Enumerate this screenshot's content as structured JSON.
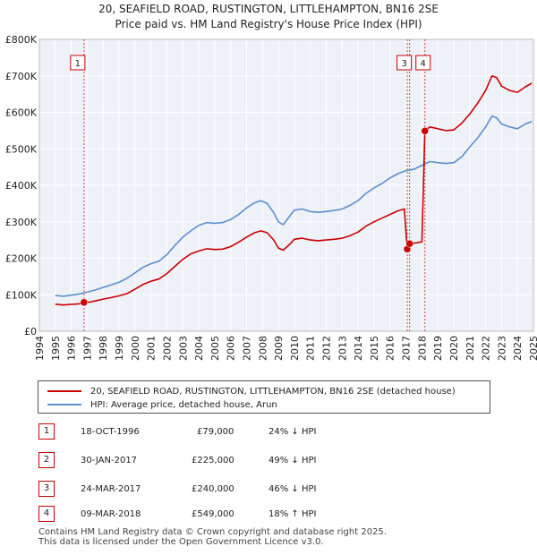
{
  "header": {
    "title": "20, SEAFIELD ROAD, RUSTINGTON, LITTLEHAMPTON, BN16 2SE",
    "subtitle": "Price paid vs. HM Land Registry's House Price Index (HPI)"
  },
  "colors": {
    "property": "#cc0000",
    "hpi": "#5b8fd1",
    "grid": "#dddddd",
    "marker_line": "#cc0000"
  },
  "chart_data": {
    "type": "line",
    "title": "20, SEAFIELD ROAD, RUSTINGTON, LITTLEHAMPTON, BN16 2SE",
    "subtitle": "Price paid vs. HM Land Registry's House Price Index (HPI)",
    "xlim": [
      1994,
      2025
    ],
    "ylim": [
      0,
      800000
    ],
    "x_ticks": [
      "1994",
      "1995",
      "1996",
      "1997",
      "1998",
      "1999",
      "2000",
      "2001",
      "2002",
      "2003",
      "2004",
      "2005",
      "2006",
      "2007",
      "2008",
      "2009",
      "2010",
      "2011",
      "2012",
      "2013",
      "2014",
      "2015",
      "2016",
      "2017",
      "2018",
      "2019",
      "2020",
      "2021",
      "2022",
      "2023",
      "2024",
      "2025"
    ],
    "y_ticks": [
      {
        "value": 0,
        "label": "£0"
      },
      {
        "value": 100000,
        "label": "£100K"
      },
      {
        "value": 200000,
        "label": "£200K"
      },
      {
        "value": 300000,
        "label": "£300K"
      },
      {
        "value": 400000,
        "label": "£400K"
      },
      {
        "value": 500000,
        "label": "£500K"
      },
      {
        "value": 600000,
        "label": "£600K"
      },
      {
        "value": 700000,
        "label": "£700K"
      },
      {
        "value": 800000,
        "label": "£800K"
      }
    ],
    "series": [
      {
        "name": "20, SEAFIELD ROAD, RUSTINGTON, LITTLEHAMPTON, BN16 2SE (detached house)",
        "color": "#cc0000",
        "points": [
          [
            1995.0,
            74000
          ],
          [
            1995.5,
            72000
          ],
          [
            1996.0,
            73500
          ],
          [
            1996.5,
            75000
          ],
          [
            1996.8,
            79000
          ],
          [
            1997.2,
            80000
          ],
          [
            1997.6,
            84000
          ],
          [
            1998.0,
            88000
          ],
          [
            1998.5,
            92000
          ],
          [
            1999.0,
            97000
          ],
          [
            1999.5,
            103000
          ],
          [
            2000.0,
            115000
          ],
          [
            2000.5,
            128000
          ],
          [
            2001.0,
            137000
          ],
          [
            2001.5,
            143000
          ],
          [
            2002.0,
            158000
          ],
          [
            2002.5,
            178000
          ],
          [
            2003.0,
            197000
          ],
          [
            2003.5,
            212000
          ],
          [
            2004.0,
            220000
          ],
          [
            2004.5,
            226000
          ],
          [
            2005.0,
            224000
          ],
          [
            2005.5,
            225000
          ],
          [
            2006.0,
            232000
          ],
          [
            2006.5,
            244000
          ],
          [
            2007.0,
            258000
          ],
          [
            2007.5,
            270000
          ],
          [
            2007.9,
            275000
          ],
          [
            2008.3,
            270000
          ],
          [
            2008.7,
            250000
          ],
          [
            2009.0,
            228000
          ],
          [
            2009.3,
            222000
          ],
          [
            2009.7,
            238000
          ],
          [
            2010.0,
            252000
          ],
          [
            2010.5,
            255000
          ],
          [
            2011.0,
            250000
          ],
          [
            2011.5,
            248000
          ],
          [
            2012.0,
            250000
          ],
          [
            2012.5,
            252000
          ],
          [
            2013.0,
            255000
          ],
          [
            2013.5,
            262000
          ],
          [
            2014.0,
            272000
          ],
          [
            2014.5,
            288000
          ],
          [
            2015.0,
            300000
          ],
          [
            2015.5,
            310000
          ],
          [
            2016.0,
            320000
          ],
          [
            2016.5,
            330000
          ],
          [
            2016.9,
            335000
          ],
          [
            2017.08,
            225000
          ],
          [
            2017.23,
            240000
          ],
          [
            2017.6,
            242000
          ],
          [
            2018.0,
            245000
          ],
          [
            2018.19,
            549000
          ],
          [
            2018.5,
            560000
          ],
          [
            2019.0,
            555000
          ],
          [
            2019.5,
            550000
          ],
          [
            2020.0,
            552000
          ],
          [
            2020.5,
            570000
          ],
          [
            2021.0,
            595000
          ],
          [
            2021.5,
            625000
          ],
          [
            2022.0,
            660000
          ],
          [
            2022.4,
            700000
          ],
          [
            2022.7,
            695000
          ],
          [
            2023.0,
            672000
          ],
          [
            2023.5,
            660000
          ],
          [
            2024.0,
            655000
          ],
          [
            2024.5,
            670000
          ],
          [
            2024.9,
            680000
          ]
        ]
      },
      {
        "name": "HPI: Average price, detached house, Arun",
        "color": "#5b8fd1",
        "points": [
          [
            1995.0,
            98000
          ],
          [
            1995.5,
            96000
          ],
          [
            1996.0,
            99000
          ],
          [
            1996.5,
            102000
          ],
          [
            1997.0,
            107000
          ],
          [
            1997.5,
            113000
          ],
          [
            1998.0,
            120000
          ],
          [
            1998.5,
            127000
          ],
          [
            1999.0,
            134000
          ],
          [
            1999.5,
            145000
          ],
          [
            2000.0,
            160000
          ],
          [
            2000.5,
            175000
          ],
          [
            2001.0,
            185000
          ],
          [
            2001.5,
            192000
          ],
          [
            2002.0,
            210000
          ],
          [
            2002.5,
            235000
          ],
          [
            2003.0,
            258000
          ],
          [
            2003.5,
            275000
          ],
          [
            2004.0,
            290000
          ],
          [
            2004.5,
            298000
          ],
          [
            2005.0,
            296000
          ],
          [
            2005.5,
            298000
          ],
          [
            2006.0,
            306000
          ],
          [
            2006.5,
            320000
          ],
          [
            2007.0,
            338000
          ],
          [
            2007.5,
            352000
          ],
          [
            2007.9,
            358000
          ],
          [
            2008.3,
            350000
          ],
          [
            2008.7,
            325000
          ],
          [
            2009.0,
            300000
          ],
          [
            2009.3,
            292000
          ],
          [
            2009.7,
            315000
          ],
          [
            2010.0,
            332000
          ],
          [
            2010.5,
            335000
          ],
          [
            2011.0,
            328000
          ],
          [
            2011.5,
            326000
          ],
          [
            2012.0,
            328000
          ],
          [
            2012.5,
            331000
          ],
          [
            2013.0,
            335000
          ],
          [
            2013.5,
            345000
          ],
          [
            2014.0,
            358000
          ],
          [
            2014.5,
            378000
          ],
          [
            2015.0,
            393000
          ],
          [
            2015.5,
            405000
          ],
          [
            2016.0,
            420000
          ],
          [
            2016.5,
            432000
          ],
          [
            2017.0,
            440000
          ],
          [
            2017.5,
            444000
          ],
          [
            2018.0,
            455000
          ],
          [
            2018.5,
            465000
          ],
          [
            2019.0,
            462000
          ],
          [
            2019.5,
            460000
          ],
          [
            2020.0,
            462000
          ],
          [
            2020.5,
            478000
          ],
          [
            2021.0,
            505000
          ],
          [
            2021.5,
            530000
          ],
          [
            2022.0,
            560000
          ],
          [
            2022.4,
            590000
          ],
          [
            2022.7,
            585000
          ],
          [
            2023.0,
            568000
          ],
          [
            2023.5,
            560000
          ],
          [
            2024.0,
            555000
          ],
          [
            2024.5,
            568000
          ],
          [
            2024.9,
            575000
          ]
        ]
      }
    ],
    "transactions": [
      {
        "id": "1",
        "x": 1996.8,
        "y": 79000,
        "date": "18-OCT-1996",
        "price": "£79,000",
        "delta": "24% ↓ HPI"
      },
      {
        "id": "2",
        "x": 2017.08,
        "y": 225000,
        "date": "30-JAN-2017",
        "price": "£225,000",
        "delta": "49% ↓ HPI"
      },
      {
        "id": "3",
        "x": 2017.23,
        "y": 240000,
        "date": "24-MAR-2017",
        "price": "£240,000",
        "delta": "46% ↓ HPI"
      },
      {
        "id": "4",
        "x": 2018.19,
        "y": 549000,
        "date": "09-MAR-2018",
        "price": "£549,000",
        "delta": "18% ↑ HPI"
      }
    ],
    "chart_badges": [
      "1",
      "3",
      "4"
    ],
    "legend": {
      "property": "20, SEAFIELD ROAD, RUSTINGTON, LITTLEHAMPTON, BN16 2SE (detached house)",
      "hpi": "HPI: Average price, detached house, Arun"
    }
  },
  "footer": {
    "line1": "Contains HM Land Registry data © Crown copyright and database right 2025.",
    "line2": "This data is licensed under the Open Government Licence v3.0."
  }
}
